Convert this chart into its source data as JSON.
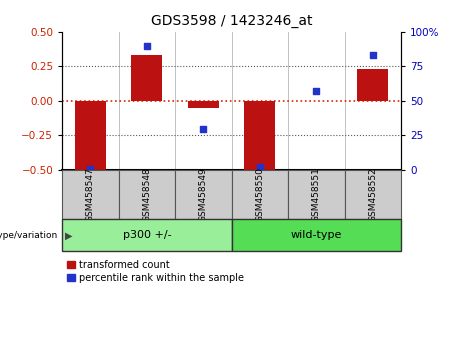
{
  "title": "GDS3598 / 1423246_at",
  "samples": [
    "GSM458547",
    "GSM458548",
    "GSM458549",
    "GSM458550",
    "GSM458551",
    "GSM458552"
  ],
  "red_bars": [
    -0.5,
    0.33,
    -0.05,
    -0.5,
    0.0,
    0.23
  ],
  "blue_dots": [
    1.0,
    90.0,
    30.0,
    2.0,
    57.0,
    83.0
  ],
  "ylim_left": [
    -0.5,
    0.5
  ],
  "ylim_right": [
    0,
    100
  ],
  "yticks_left": [
    -0.5,
    -0.25,
    0.0,
    0.25,
    0.5
  ],
  "yticks_right": [
    0,
    25,
    50,
    75,
    100
  ],
  "ytick_labels_right": [
    "0",
    "25",
    "50",
    "75",
    "100%"
  ],
  "red_color": "#bb1111",
  "blue_color": "#2233cc",
  "zero_line_color": "#dd2200",
  "dotted_line_color": "#555555",
  "group_data": [
    {
      "label": "p300 +/-",
      "start": 0,
      "end": 2,
      "color": "#99ee99"
    },
    {
      "label": "wild-type",
      "start": 3,
      "end": 5,
      "color": "#55dd55"
    }
  ],
  "group_label": "genotype/variation",
  "legend_items": [
    {
      "label": "transformed count",
      "color": "#bb1111"
    },
    {
      "label": "percentile rank within the sample",
      "color": "#2233cc"
    }
  ],
  "bar_width": 0.55,
  "cell_color": "#cccccc",
  "cell_border": "#555555",
  "tick_label_color_left": "#cc2200",
  "tick_label_color_right": "#0000bb",
  "title_fontsize": 10,
  "tick_fontsize": 7.5,
  "sample_label_fontsize": 6.5,
  "group_fontsize": 8,
  "legend_fontsize": 7
}
